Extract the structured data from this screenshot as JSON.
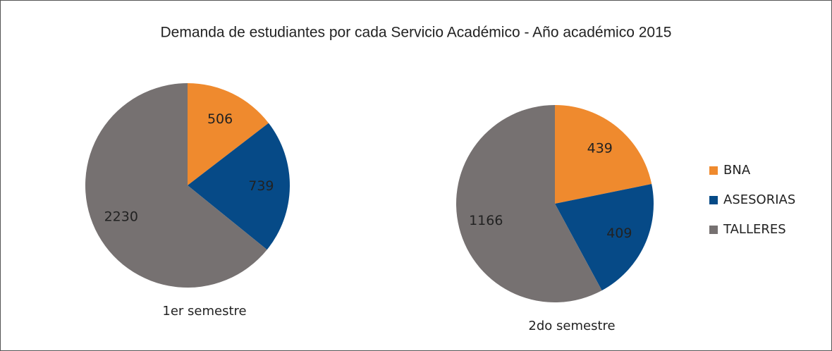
{
  "title": "Demanda de estudiantes por cada Servicio Académico - Año académico 2015",
  "legend": "right",
  "chart_data": [
    {
      "type": "pie",
      "title": "1er semestre",
      "categories": [
        "BNA",
        "ASESORIAS",
        "TALLERES"
      ],
      "values": [
        506,
        739,
        2230
      ],
      "colors": [
        "#ef8a2e",
        "#064a87",
        "#767171"
      ]
    },
    {
      "type": "pie",
      "title": "2do semestre",
      "categories": [
        "BNA",
        "ASESORIAS",
        "TALLERES"
      ],
      "values": [
        439,
        409,
        1166
      ],
      "colors": [
        "#ef8a2e",
        "#064a87",
        "#767171"
      ]
    }
  ]
}
